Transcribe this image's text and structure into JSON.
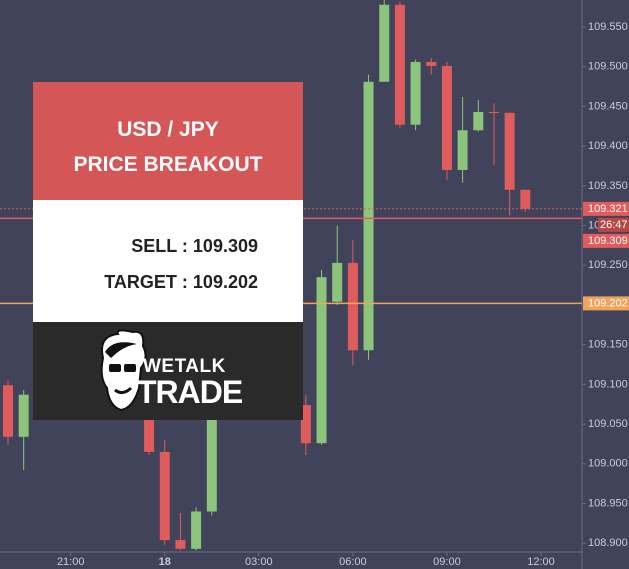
{
  "chart_data": {
    "type": "candlestick",
    "categories": [
      null,
      null,
      null,
      null,
      "21:00",
      null,
      null,
      null,
      null,
      null,
      "18",
      null,
      null,
      null,
      null,
      null,
      "03:00",
      null,
      null,
      null,
      null,
      null,
      "06:00",
      null,
      null,
      null,
      null,
      null,
      "09:00",
      null,
      null,
      null,
      null,
      null,
      "12:00"
    ],
    "open": [
      109.099,
      109.034,
      null,
      null,
      null,
      null,
      null,
      null,
      null,
      109.06,
      109.015,
      108.904,
      108.893,
      108.94,
      null,
      null,
      null,
      null,
      null,
      109.074,
      109.026,
      109.204,
      109.253,
      109.143,
      109.481,
      109.578,
      109.427,
      109.506,
      109.501,
      109.37,
      109.42,
      109.443,
      109.442,
      109.345,
      null
    ],
    "high": [
      109.105,
      109.093,
      null,
      null,
      null,
      null,
      null,
      null,
      null,
      109.08,
      109.03,
      108.938,
      108.945,
      109.07,
      null,
      null,
      null,
      null,
      null,
      109.087,
      109.244,
      109.3,
      109.282,
      109.49,
      109.584,
      109.582,
      109.509,
      109.511,
      109.506,
      109.462,
      109.458,
      109.454,
      109.442,
      109.345,
      null
    ],
    "low": [
      109.024,
      108.992,
      null,
      null,
      null,
      null,
      null,
      null,
      null,
      109.011,
      108.898,
      108.891,
      108.891,
      108.935,
      null,
      null,
      null,
      null,
      null,
      109.011,
      109.024,
      109.2,
      109.124,
      109.131,
      109.481,
      109.423,
      109.42,
      109.49,
      109.357,
      109.354,
      109.418,
      109.376,
      109.313,
      109.317,
      null
    ],
    "close": [
      109.034,
      109.087,
      null,
      null,
      null,
      null,
      null,
      null,
      null,
      109.015,
      108.904,
      108.893,
      108.94,
      109.06,
      null,
      null,
      null,
      null,
      null,
      109.026,
      109.235,
      109.253,
      109.143,
      109.481,
      109.578,
      109.427,
      109.506,
      109.501,
      109.37,
      109.42,
      109.443,
      109.442,
      109.345,
      109.321,
      null
    ],
    "up_color": "#8cc47c",
    "down_color": "#e05c5c",
    "ylim": [
      108.889,
      109.584
    ],
    "yticks": [
      {
        "value": 109.55,
        "label": "109.550"
      },
      {
        "value": 109.5,
        "label": "109.500"
      },
      {
        "value": 109.45,
        "label": "109.450"
      },
      {
        "value": 109.4,
        "label": "109.400"
      },
      {
        "value": 109.35,
        "label": "109.350"
      },
      {
        "value": 109.3,
        "label": "109.300"
      },
      {
        "value": 109.25,
        "label": "109.250"
      },
      {
        "value": 109.2,
        "label": "109.200"
      },
      {
        "value": 109.15,
        "label": "109.150"
      },
      {
        "value": 109.1,
        "label": "109.100"
      },
      {
        "value": 109.05,
        "label": "109.050"
      },
      {
        "value": 109.0,
        "label": "109.000"
      },
      {
        "value": 108.95,
        "label": "108.950"
      },
      {
        "value": 108.9,
        "label": "108.900"
      }
    ],
    "price_lines": [
      {
        "value": 109.321,
        "color": "#e05c5c",
        "style": "dotted"
      },
      {
        "value": 109.309,
        "color": "#e05c5c",
        "style": "solid"
      },
      {
        "value": 109.202,
        "color": "#f0a35a",
        "style": "solid"
      }
    ],
    "timer": "26:47",
    "grid": false
  },
  "overlay": {
    "pair": "USD / JPY",
    "headline": "PRICE BREAKOUT",
    "sell": "SELL : 109.309",
    "target": "TARGET : 109.202",
    "brand_top": "WETALK",
    "brand_bottom": "TRADE"
  }
}
